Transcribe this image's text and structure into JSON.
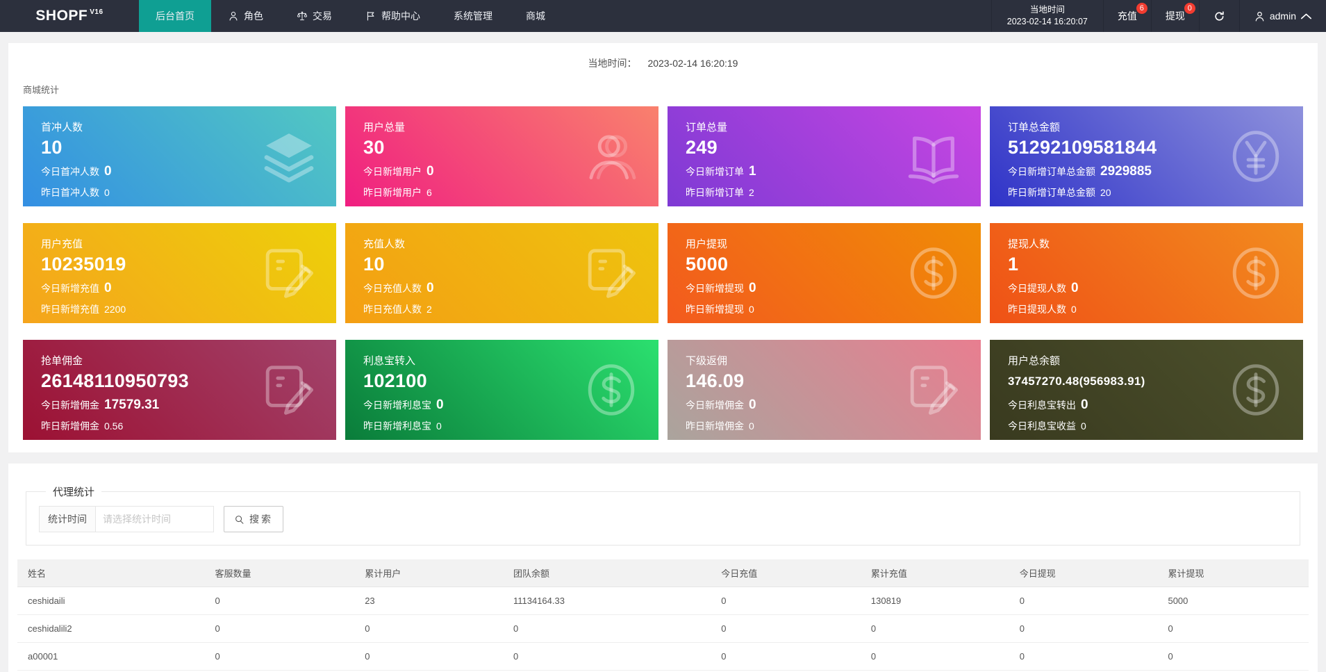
{
  "colors": {
    "nav_bg": "#2c303d",
    "nav_active": "#0f9f93",
    "badge": "#f23c30"
  },
  "nav": {
    "brand": "SHOPF",
    "brand_sup": "V16",
    "tabs": [
      {
        "key": "home",
        "label": "后台首页",
        "active": true
      },
      {
        "key": "role",
        "label": "角色",
        "icon": "user-small"
      },
      {
        "key": "trade",
        "label": "交易",
        "icon": "scales"
      },
      {
        "key": "help",
        "label": "帮助中心",
        "icon": "flag"
      },
      {
        "key": "system",
        "label": "系统管理"
      },
      {
        "key": "mall",
        "label": "商城"
      }
    ],
    "local_time_label": "当地时间",
    "local_time_value": "2023-02-14 16:20:07",
    "recharge_label": "充值",
    "recharge_badge": "6",
    "withdraw_label": "提现",
    "withdraw_badge": "0",
    "user": "admin"
  },
  "timebar": {
    "label": "当地时间：",
    "value": "2023-02-14 16:20:19"
  },
  "stats": {
    "section_title": "商城统计",
    "cards": [
      {
        "key": "first-charge-users",
        "title": "首冲人数",
        "value": "10",
        "today_label": "今日首冲人数",
        "today_value": "0",
        "yesterday_label": "昨日首冲人数",
        "yesterday_value": "0",
        "icon": "layers",
        "gradient": [
          "#338fe3",
          "#52c8c2"
        ]
      },
      {
        "key": "total-users",
        "title": "用户总量",
        "value": "30",
        "today_label": "今日新增用户",
        "today_value": "0",
        "yesterday_label": "昨日新增用户",
        "yesterday_value": "6",
        "icon": "user",
        "gradient": [
          "#f01e81",
          "#f9816d"
        ]
      },
      {
        "key": "total-orders",
        "title": "订单总量",
        "value": "249",
        "today_label": "今日新增订单",
        "today_value": "1",
        "yesterday_label": "昨日新增订单",
        "yesterday_value": "2",
        "icon": "book",
        "gradient": [
          "#7e3ad4",
          "#c746e2"
        ]
      },
      {
        "key": "total-order-amount",
        "title": "订单总金额",
        "value": "51292109581844",
        "today_label": "今日新增订单总金额",
        "today_value": "2929885",
        "yesterday_label": "昨日新增订单总金额",
        "yesterday_value": "20",
        "icon": "yen",
        "gradient": [
          "#2f33c8",
          "#8e91dc"
        ]
      },
      {
        "key": "user-recharge",
        "title": "用户充值",
        "value": "10235019",
        "today_label": "今日新增充值",
        "today_value": "0",
        "yesterday_label": "昨日新增充值",
        "yesterday_value": "2200",
        "icon": "contract",
        "gradient": [
          "#f5a41c",
          "#edd00a"
        ]
      },
      {
        "key": "recharge-users",
        "title": "充值人数",
        "value": "10",
        "today_label": "今日充值人数",
        "today_value": "0",
        "yesterday_label": "昨日充值人数",
        "yesterday_value": "2",
        "icon": "contract",
        "gradient": [
          "#f49e13",
          "#eec40e"
        ]
      },
      {
        "key": "user-withdraw",
        "title": "用户提现",
        "value": "5000",
        "today_label": "今日新增提现",
        "today_value": "0",
        "yesterday_label": "昨日新增提现",
        "yesterday_value": "0",
        "icon": "dollar",
        "gradient": [
          "#f35a1e",
          "#f08c06"
        ]
      },
      {
        "key": "withdraw-users",
        "title": "提现人数",
        "value": "1",
        "today_label": "今日提现人数",
        "today_value": "0",
        "yesterday_label": "昨日提现人数",
        "yesterday_value": "0",
        "icon": "dollar",
        "gradient": [
          "#ef5116",
          "#f28c1e"
        ]
      },
      {
        "key": "grab-commission",
        "title": "抢单佣金",
        "value": "26148110950793",
        "today_label": "今日新增佣金",
        "today_value": "17579.31",
        "yesterday_label": "昨日新增佣金",
        "yesterday_value": "0.56",
        "icon": "contract",
        "gradient": [
          "#9c1133",
          "#a2436b"
        ]
      },
      {
        "key": "lixibao-in",
        "title": "利息宝转入",
        "value": "102100",
        "today_label": "今日新增利息宝",
        "today_value": "0",
        "yesterday_label": "昨日新增利息宝",
        "yesterday_value": "0",
        "icon": "dollar",
        "gradient": [
          "#0a7c3a",
          "#2be06f"
        ]
      },
      {
        "key": "sub-rebate",
        "title": "下级返佣",
        "value": "146.09",
        "today_label": "今日新增佣金",
        "today_value": "0",
        "yesterday_label": "昨日新增佣金",
        "yesterday_value": "0",
        "icon": "contract",
        "gradient": [
          "#aaa49d",
          "#e87e90"
        ]
      },
      {
        "key": "user-total-balance",
        "title": "用户总余额",
        "value": "37457270.48(956983.91)",
        "today_label": "今日利息宝转出",
        "today_value": "0",
        "yesterday_label": "今日利息宝收益",
        "yesterday_value": "0",
        "icon": "dollar",
        "gradient": [
          "#393a1f",
          "#4d512c"
        ]
      }
    ]
  },
  "agent": {
    "legend": "代理统计",
    "filter_label": "统计时间",
    "filter_placeholder": "请选择统计时间",
    "search_label": "搜索",
    "table": {
      "headers": [
        "姓名",
        "客服数量",
        "累计用户",
        "团队余额",
        "今日充值",
        "累计充值",
        "今日提现",
        "累计提现"
      ],
      "col_widths": [
        "14.5%",
        "11.6%",
        "11.5%",
        "16.1%",
        "11.6%",
        "11.5%",
        "11.5%",
        "11.7%"
      ],
      "rows": [
        [
          "ceshidaili",
          "0",
          "23",
          "11134164.33",
          "0",
          "130819",
          "0",
          "5000"
        ],
        [
          "ceshidalili2",
          "0",
          "0",
          "0",
          "0",
          "0",
          "0",
          "0"
        ],
        [
          "a00001",
          "0",
          "0",
          "0",
          "0",
          "0",
          "0",
          "0"
        ]
      ]
    }
  }
}
